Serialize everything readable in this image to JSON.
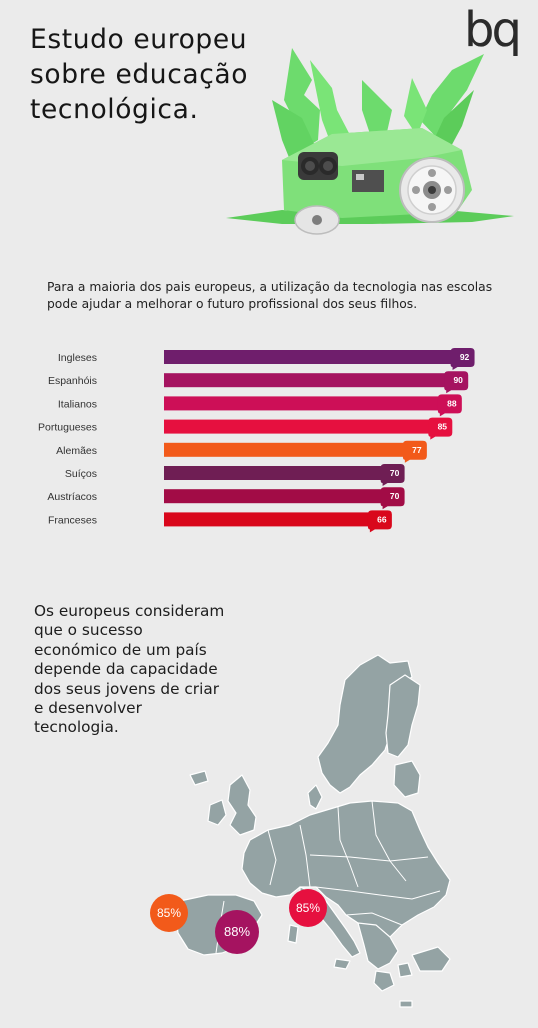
{
  "header": {
    "title_lines": [
      "Estudo europeu",
      "sobre educação",
      "tecnológica."
    ],
    "logo_text": "bq"
  },
  "intro": {
    "lines": [
      "Para a maioria dos pais europeus, a utilização da tecnologia nas escolas",
      "pode ajudar a melhorar o futuro profissional dos seus filhos."
    ]
  },
  "chart_data": {
    "type": "bar",
    "orientation": "horizontal",
    "categories": [
      "Ingleses",
      "Espanhóis",
      "Italianos",
      "Portugueses",
      "Alemães",
      "Suíços",
      "Austríacos",
      "Franceses"
    ],
    "values": [
      92,
      90,
      88,
      85,
      77,
      70,
      70,
      66
    ],
    "colors": [
      "#6f1e6c",
      "#a51360",
      "#cd0f57",
      "#e6103f",
      "#f25a1a",
      "#6f1e54",
      "#a20c46",
      "#d9071b"
    ],
    "data_labels": true,
    "title": "",
    "xlabel": "",
    "ylabel": ""
  },
  "claim": {
    "lines": [
      "Os europeus consideram",
      "que o sucesso",
      "económico de um país",
      "depende da capacidade",
      "dos seus jovens de criar",
      "e desenvolver",
      "tecnologia."
    ]
  },
  "map": {
    "land_color": "#94a3a4",
    "border_color": "#ffffff",
    "badges": [
      {
        "label": "85%",
        "color": "#f25a1a"
      },
      {
        "label": "88%",
        "color": "#a51360"
      },
      {
        "label": "85%",
        "color": "#e6103f"
      }
    ]
  },
  "colors": {
    "background": "#ebebeb",
    "robot_green": "#6ddb6d",
    "robot_body": "#7fe07a"
  }
}
